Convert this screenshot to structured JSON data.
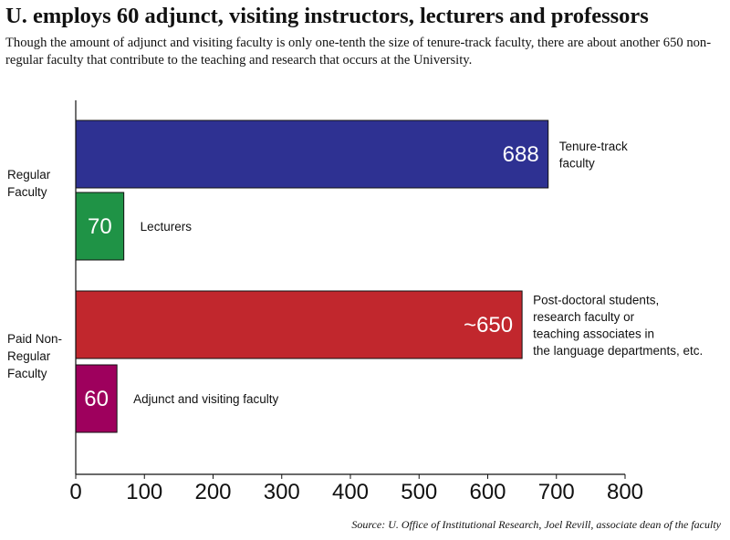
{
  "title": "U. employs 60 adjunct, visiting instructors, lecturers and professors",
  "subtitle": "Though the amount of adjunct and visiting faculty is only one-tenth the size of tenure-track faculty, there are about another 650 non-regular faculty that contribute to the teaching and research that occurs at the University.",
  "source": "Source: U. Office of Institutional Research, Joel Revill, associate dean of the faculty",
  "chart_data": {
    "type": "bar",
    "orientation": "horizontal",
    "xlim": [
      0,
      800
    ],
    "ticks": [
      0,
      100,
      200,
      300,
      400,
      500,
      600,
      700,
      800
    ],
    "groups": [
      {
        "label_lines": [
          "Regular",
          "Faculty"
        ],
        "bars": [
          {
            "value": 688,
            "display": "688",
            "label_lines": [
              "Tenure-track",
              "faculty"
            ],
            "color": "#2e3192"
          },
          {
            "value": 70,
            "display": "70",
            "label_lines": [
              "Lecturers"
            ],
            "color": "#1f9346"
          }
        ]
      },
      {
        "label_lines": [
          "Paid Non-",
          "Regular",
          "Faculty"
        ],
        "bars": [
          {
            "value": 650,
            "display": "~650",
            "label_lines": [
              "Post-doctoral students,",
              "research faculty or",
              "teaching associates in",
              "the language departments, etc."
            ],
            "color": "#c1272d"
          },
          {
            "value": 60,
            "display": "60",
            "label_lines": [
              "Adjunct and visiting faculty"
            ],
            "color": "#9e005d"
          }
        ]
      }
    ]
  }
}
